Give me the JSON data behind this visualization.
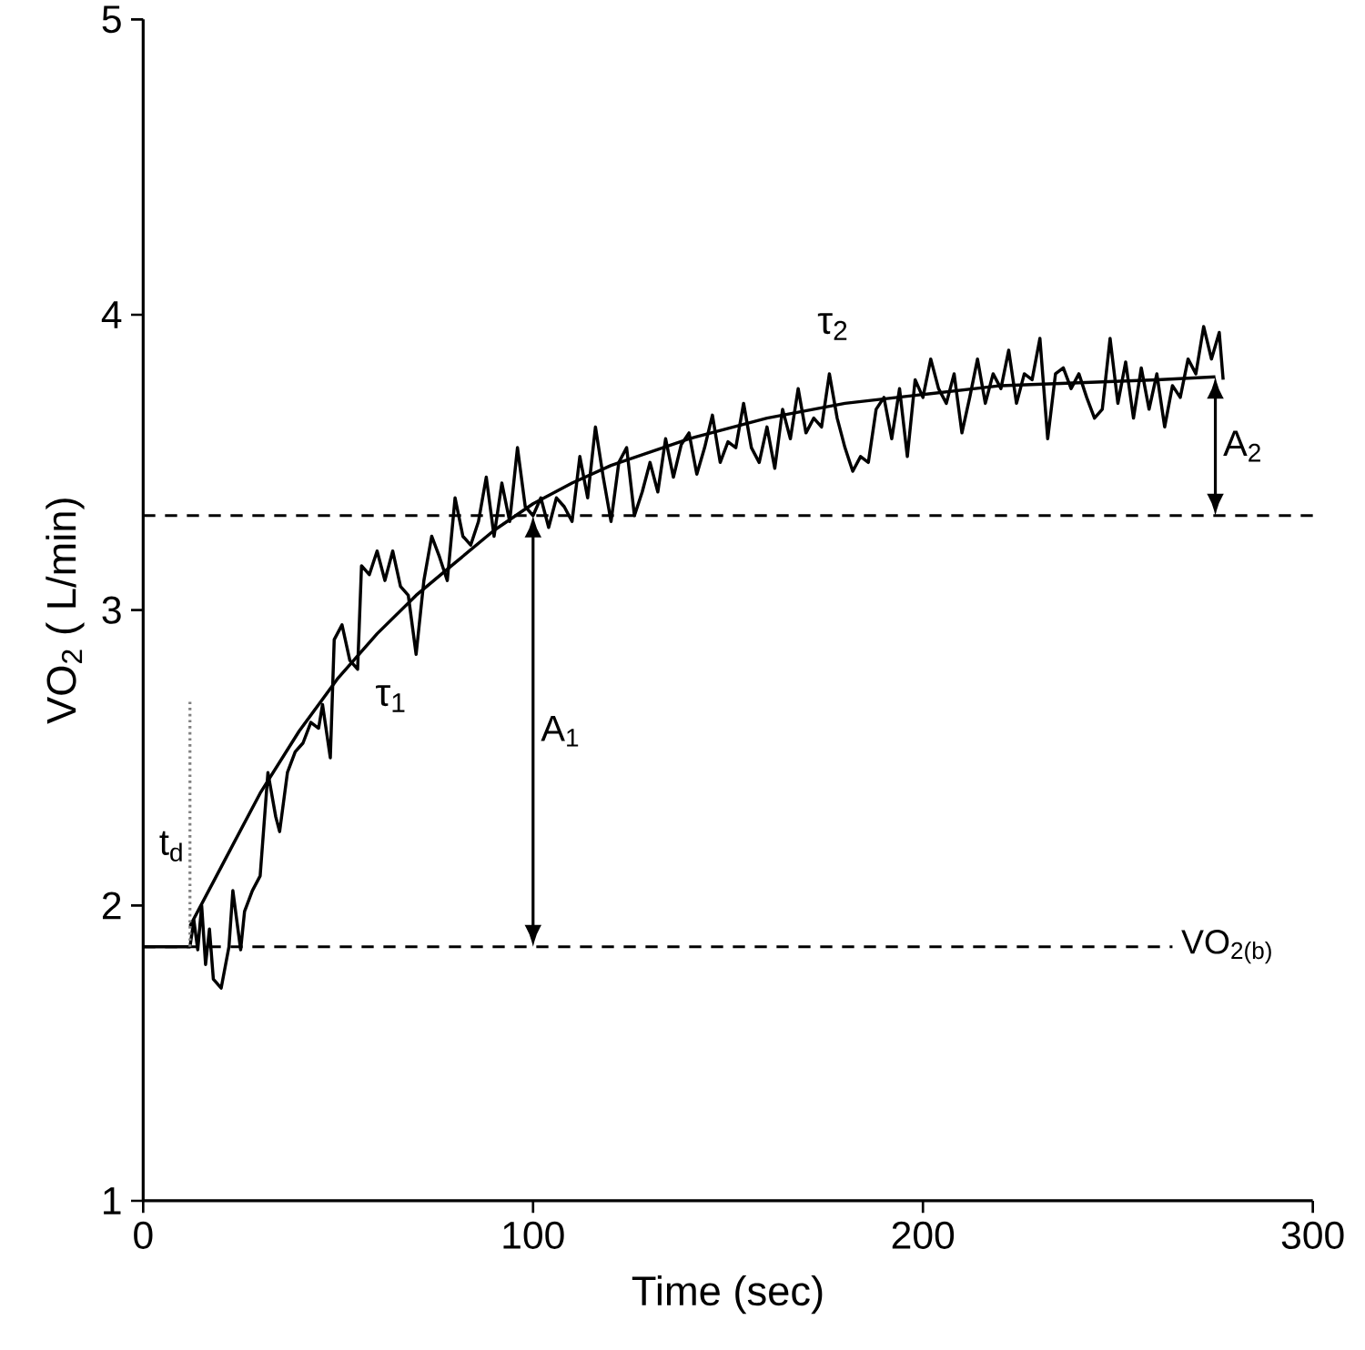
{
  "chart_data": {
    "type": "line",
    "xlabel": "Time (sec)",
    "ylabel": "VO$_{2}$ ( L/min)",
    "xlim": [
      0,
      300
    ],
    "ylim": [
      1,
      5
    ],
    "xticks": [
      0,
      100,
      200,
      300
    ],
    "yticks": [
      1,
      2,
      3,
      4,
      5
    ],
    "grid": false,
    "series": [
      {
        "color": "#000000",
        "line_style": "solid",
        "x": [
          0,
          6,
          12,
          13,
          14,
          15,
          16,
          17,
          18,
          20,
          22,
          23,
          25,
          26,
          28,
          30,
          32,
          34,
          35,
          37,
          39,
          41,
          43,
          45,
          46,
          48,
          49,
          51,
          53,
          55,
          56,
          58,
          60,
          62,
          64,
          66,
          68,
          70,
          72,
          74,
          76,
          78,
          80,
          82,
          84,
          86,
          88,
          90,
          92,
          94,
          96,
          98,
          100,
          102,
          104,
          106,
          108,
          110,
          112,
          114,
          116,
          118,
          120,
          122,
          124,
          126,
          128,
          130,
          132,
          134,
          136,
          138,
          140,
          142,
          144,
          146,
          148,
          150,
          152,
          154,
          156,
          158,
          160,
          162,
          164,
          166,
          168,
          170,
          172,
          174,
          176,
          178,
          180,
          182,
          184,
          186,
          188,
          190,
          192,
          194,
          196,
          198,
          200,
          202,
          204,
          206,
          208,
          210,
          212,
          214,
          216,
          218,
          220,
          222,
          224,
          226,
          228,
          230,
          232,
          234,
          236,
          238,
          240,
          242,
          244,
          246,
          248,
          250,
          252,
          254,
          256,
          258,
          260,
          262,
          264,
          266,
          268,
          270,
          272,
          274,
          276,
          277
        ],
        "values": [
          1.86,
          1.86,
          1.86,
          1.95,
          1.85,
          2.0,
          1.8,
          1.92,
          1.75,
          1.72,
          1.86,
          2.05,
          1.85,
          1.98,
          2.05,
          2.1,
          2.45,
          2.3,
          2.25,
          2.45,
          2.52,
          2.55,
          2.62,
          2.6,
          2.68,
          2.5,
          2.9,
          2.95,
          2.83,
          2.8,
          3.15,
          3.12,
          3.2,
          3.1,
          3.2,
          3.08,
          3.05,
          2.85,
          3.1,
          3.25,
          3.18,
          3.1,
          3.38,
          3.25,
          3.22,
          3.3,
          3.45,
          3.25,
          3.43,
          3.3,
          3.55,
          3.35,
          3.32,
          3.38,
          3.28,
          3.38,
          3.35,
          3.3,
          3.52,
          3.38,
          3.62,
          3.45,
          3.3,
          3.5,
          3.55,
          3.32,
          3.4,
          3.5,
          3.4,
          3.58,
          3.45,
          3.56,
          3.6,
          3.46,
          3.55,
          3.66,
          3.5,
          3.57,
          3.55,
          3.7,
          3.55,
          3.5,
          3.62,
          3.48,
          3.68,
          3.58,
          3.75,
          3.6,
          3.65,
          3.62,
          3.8,
          3.65,
          3.55,
          3.47,
          3.52,
          3.5,
          3.68,
          3.72,
          3.58,
          3.75,
          3.52,
          3.78,
          3.72,
          3.85,
          3.75,
          3.7,
          3.8,
          3.6,
          3.72,
          3.85,
          3.7,
          3.8,
          3.75,
          3.88,
          3.7,
          3.8,
          3.78,
          3.92,
          3.58,
          3.8,
          3.82,
          3.75,
          3.8,
          3.72,
          3.65,
          3.68,
          3.92,
          3.7,
          3.84,
          3.65,
          3.82,
          3.68,
          3.8,
          3.62,
          3.76,
          3.72,
          3.85,
          3.8,
          3.96,
          3.85,
          3.94,
          3.78
        ]
      },
      {
        "type": "line",
        "color": "#000000",
        "line_style": "solid",
        "x": [
          12,
          20,
          30,
          40,
          50,
          60,
          70,
          80,
          90,
          100,
          110,
          120,
          140,
          160,
          180,
          200,
          220,
          240,
          260,
          275
        ],
        "values": [
          1.93,
          2.13,
          2.38,
          2.59,
          2.77,
          2.92,
          3.05,
          3.16,
          3.27,
          3.36,
          3.43,
          3.49,
          3.58,
          3.65,
          3.7,
          3.73,
          3.76,
          3.77,
          3.78,
          3.79
        ]
      }
    ],
    "ref_lines": [
      {
        "axis": "y",
        "value": 1.86,
        "label": "VO$_{2(b)}$",
        "line_style": "dashed",
        "color": "#000000"
      },
      {
        "axis": "y",
        "value": 3.32,
        "line_style": "dashed",
        "color": "#000000"
      },
      {
        "axis": "x",
        "value": 12,
        "label": "t$_{d}$",
        "line_style": "dotted",
        "color": "#808080"
      }
    ],
    "annotations": [
      "τ$_{1}$",
      "τ$_{2}$",
      "A$_{1}$",
      "A$_{2}$"
    ]
  }
}
